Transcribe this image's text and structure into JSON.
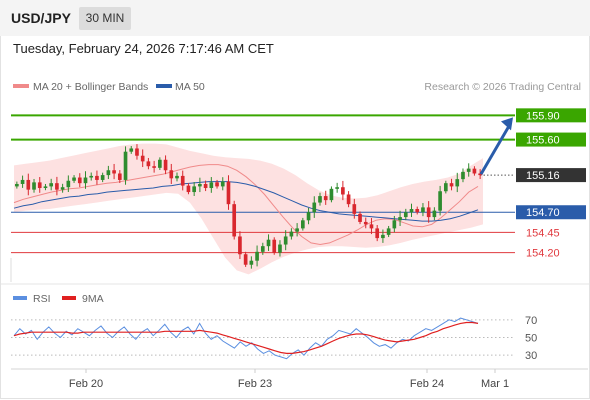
{
  "header": {
    "symbol": "USD/JPY",
    "timeframe": "30 MIN",
    "timestamp": "Tuesday, February 24, 2026 7:17:46 AM CET"
  },
  "legend": {
    "ma20_bb": "MA 20 + Bollinger Bands",
    "ma50": "MA 50",
    "credit": "Research © 2026 Trading Central"
  },
  "rsi_legend": {
    "rsi": "RSI",
    "ma9": "9MA"
  },
  "colors": {
    "green": "#3aa600",
    "blue": "#2a5caa",
    "red": "#e0393e",
    "dark": "#333333",
    "bb_fill": "#fde1e1",
    "up_candle": "#2f8c2f",
    "down_candle": "#d9272e",
    "rsi_line": "#5b8fe0",
    "rsi_ma": "#e02020"
  },
  "chart_data": [
    {
      "type": "candlestick",
      "pair": "USD/JPY",
      "interval": "30 MIN",
      "ylim": [
        153.96,
        156.09
      ],
      "x_tick_labels": [
        "Feb 20",
        "Feb 23",
        "Feb 24",
        "Mar 1"
      ],
      "current_price": 155.16,
      "levels": [
        {
          "label": "155.90",
          "value": 155.9,
          "kind": "target",
          "color": "#3aa600"
        },
        {
          "label": "155.60",
          "value": 155.6,
          "kind": "target",
          "color": "#3aa600"
        },
        {
          "label": "155.16",
          "value": 155.16,
          "kind": "last-price",
          "color": "#333333"
        },
        {
          "label": "154.70",
          "value": 154.7,
          "kind": "pivot",
          "color": "#2a5caa"
        },
        {
          "label": "154.45",
          "value": 154.45,
          "kind": "support",
          "color": "#e0393e"
        },
        {
          "label": "154.20",
          "value": 154.2,
          "kind": "support",
          "color": "#e0393e"
        }
      ],
      "close_path": [
        155.05,
        155.1,
        154.98,
        155.07,
        155.0,
        155.02,
        155.06,
        154.98,
        155.01,
        155.09,
        155.13,
        155.06,
        155.13,
        155.15,
        155.1,
        155.16,
        155.22,
        155.18,
        155.1,
        155.45,
        155.49,
        155.4,
        155.33,
        155.27,
        155.25,
        155.35,
        155.22,
        155.12,
        155.15,
        155.03,
        154.95,
        155.02,
        155.05,
        155.0,
        155.07,
        155.02,
        155.08,
        154.8,
        154.4,
        154.18,
        154.05,
        154.1,
        154.21,
        154.28,
        154.36,
        154.2,
        154.3,
        154.4,
        154.46,
        154.5,
        154.6,
        154.7,
        154.82,
        154.9,
        154.85,
        154.99,
        155.01,
        154.92,
        154.8,
        154.68,
        154.58,
        154.55,
        154.5,
        154.38,
        154.42,
        154.5,
        154.6,
        154.64,
        154.7,
        154.74,
        154.7,
        154.76,
        154.64,
        154.72,
        154.96,
        155.06,
        155.02,
        155.11,
        155.2,
        155.24,
        155.18,
        155.16
      ],
      "ma20": [
        154.82,
        154.86,
        154.89,
        154.92,
        154.95,
        154.97,
        154.99,
        155.0,
        155.02,
        155.04,
        155.06,
        155.07,
        155.09,
        155.11,
        155.13,
        155.15,
        155.17,
        155.2,
        155.23,
        155.26,
        155.28,
        155.29,
        155.29,
        155.27,
        155.22,
        155.14,
        155.04,
        154.92,
        154.78,
        154.64,
        154.51,
        154.4,
        154.32,
        154.3,
        154.32,
        154.37,
        154.42,
        154.48,
        154.55,
        154.6,
        154.62,
        154.61,
        154.57,
        154.53,
        154.52,
        154.55,
        154.63,
        154.73,
        154.83,
        154.95,
        155.02
      ],
      "ma50": [
        154.75,
        154.78,
        154.8,
        154.83,
        154.85,
        154.87,
        154.89,
        154.9,
        154.92,
        154.93,
        154.95,
        154.96,
        154.97,
        154.98,
        154.99,
        155.0,
        155.02,
        155.03,
        155.05,
        155.06,
        155.07,
        155.08,
        155.08,
        155.08,
        155.07,
        155.05,
        155.02,
        154.98,
        154.94,
        154.89,
        154.84,
        154.79,
        154.75,
        154.72,
        154.7,
        154.68,
        154.67,
        154.66,
        154.65,
        154.64,
        154.63,
        154.62,
        154.61,
        154.6,
        154.59,
        154.59,
        154.6,
        154.62,
        154.65,
        154.69,
        154.73
      ],
      "bb_upper": [
        155.28,
        155.3,
        155.32,
        155.34,
        155.37,
        155.4,
        155.43,
        155.46,
        155.49,
        155.52,
        155.54,
        155.55,
        155.55,
        155.54,
        155.5,
        155.46,
        155.43,
        155.4,
        155.38,
        155.37,
        155.36,
        155.34,
        155.3,
        155.24,
        155.16,
        155.06,
        154.97,
        154.91,
        154.88,
        154.87,
        154.88,
        154.91,
        154.96,
        155.01,
        155.05,
        155.08,
        155.1,
        155.13,
        155.18,
        155.28,
        155.37
      ],
      "bb_lower": [
        154.7,
        154.72,
        154.73,
        154.74,
        154.76,
        154.78,
        154.8,
        154.82,
        154.84,
        154.86,
        154.88,
        154.9,
        154.92,
        154.94,
        154.93,
        154.82,
        154.62,
        154.38,
        154.14,
        153.98,
        153.93,
        154.0,
        154.08,
        154.15,
        154.2,
        154.24,
        154.27,
        154.28,
        154.28,
        154.27,
        154.26,
        154.27,
        154.29,
        154.32,
        154.36,
        154.39,
        154.42,
        154.45,
        154.48,
        154.51,
        154.55
      ]
    },
    {
      "type": "line",
      "title": "RSI",
      "ylim": [
        20,
        80
      ],
      "y_ticks": [
        70,
        50,
        30
      ],
      "x_tick_labels": [
        "Feb 20",
        "Feb 23",
        "Feb 24",
        "Mar 1"
      ],
      "series": [
        {
          "name": "RSI",
          "values": [
            52,
            60,
            54,
            58,
            48,
            56,
            62,
            55,
            50,
            57,
            53,
            60,
            56,
            52,
            58,
            63,
            55,
            50,
            57,
            62,
            54,
            48,
            56,
            60,
            52,
            58,
            65,
            56,
            50,
            58,
            62,
            54,
            66,
            55,
            48,
            52,
            46,
            42,
            38,
            45,
            40,
            44,
            37,
            32,
            35,
            30,
            28,
            26,
            32,
            36,
            30,
            38,
            44,
            40,
            48,
            52,
            58,
            56,
            54,
            60,
            55,
            50,
            44,
            40,
            42,
            38,
            44,
            48,
            46,
            52,
            56,
            60,
            58,
            62,
            66,
            70,
            68,
            72,
            70,
            68,
            66
          ]
        },
        {
          "name": "9MA",
          "values": [
            52,
            54,
            55,
            56,
            56,
            56,
            56,
            56,
            56,
            56,
            55,
            55,
            56,
            56,
            56,
            56,
            56,
            56,
            56,
            56,
            56,
            56,
            56,
            56,
            56,
            56,
            57,
            57,
            57,
            57,
            57,
            57,
            58,
            57,
            56,
            55,
            53,
            51,
            49,
            47,
            45,
            43,
            41,
            39,
            37,
            35,
            33,
            32,
            32,
            33,
            34,
            36,
            38,
            40,
            43,
            46,
            49,
            51,
            53,
            54,
            54,
            53,
            51,
            49,
            47,
            46,
            45,
            46,
            47,
            48,
            50,
            52,
            55,
            57,
            60,
            62,
            64,
            66,
            67,
            67,
            66
          ]
        }
      ]
    }
  ]
}
